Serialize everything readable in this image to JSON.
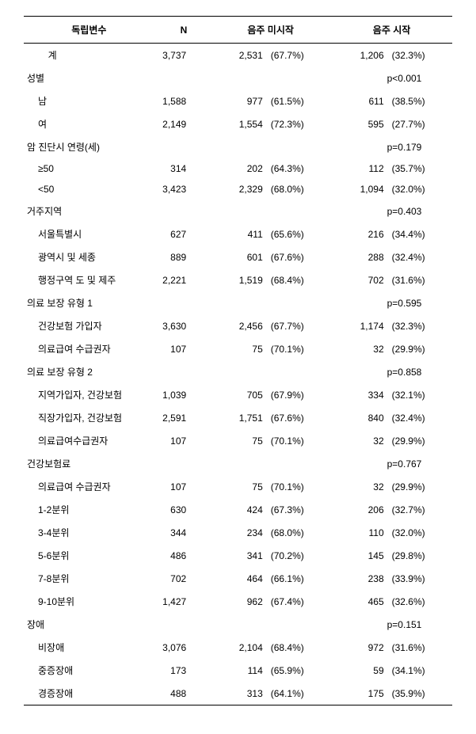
{
  "headers": {
    "var": "독립변수",
    "n": "N",
    "no_start": "음주 미시작",
    "start": "음주 시작"
  },
  "total": {
    "label": "계",
    "n": "3,737",
    "v1": "2,531",
    "p1": "(67.7%)",
    "v2": "1,206",
    "p2": "(32.3%)"
  },
  "groups": [
    {
      "label": "성별",
      "pval": "p<0.001",
      "rows": [
        {
          "label": "남",
          "n": "1,588",
          "v1": "977",
          "p1": "(61.5%)",
          "v2": "611",
          "p2": "(38.5%)"
        },
        {
          "label": "여",
          "n": "2,149",
          "v1": "1,554",
          "p1": "(72.3%)",
          "v2": "595",
          "p2": "(27.7%)"
        }
      ]
    },
    {
      "label": "암 진단시 연령(세)",
      "pval": "p=0.179",
      "rows": [
        {
          "label": "≥50",
          "n": "314",
          "v1": "202",
          "p1": "(64.3%)",
          "v2": "112",
          "p2": "(35.7%)"
        },
        {
          "label": "<50",
          "n": "3,423",
          "v1": "2,329",
          "p1": "(68.0%)",
          "v2": "1,094",
          "p2": "(32.0%)"
        }
      ]
    },
    {
      "label": "거주지역",
      "pval": "p=0.403",
      "rows": [
        {
          "label": "서울특별시",
          "n": "627",
          "v1": "411",
          "p1": "(65.6%)",
          "v2": "216",
          "p2": "(34.4%)"
        },
        {
          "label": "광역시 및 세종",
          "n": "889",
          "v1": "601",
          "p1": "(67.6%)",
          "v2": "288",
          "p2": "(32.4%)"
        },
        {
          "label": "행정구역 도 및 제주",
          "n": "2,221",
          "v1": "1,519",
          "p1": "(68.4%)",
          "v2": "702",
          "p2": "(31.6%)"
        }
      ]
    },
    {
      "label": "의료 보장 유형 1",
      "pval": "p=0.595",
      "rows": [
        {
          "label": "건강보험 가입자",
          "n": "3,630",
          "v1": "2,456",
          "p1": "(67.7%)",
          "v2": "1,174",
          "p2": "(32.3%)"
        },
        {
          "label": "의료급여 수급권자",
          "n": "107",
          "v1": "75",
          "p1": "(70.1%)",
          "v2": "32",
          "p2": "(29.9%)"
        }
      ]
    },
    {
      "label": "의료 보장 유형 2",
      "pval": "p=0.858",
      "rows": [
        {
          "label": "지역가입자, 건강보험",
          "n": "1,039",
          "v1": "705",
          "p1": "(67.9%)",
          "v2": "334",
          "p2": "(32.1%)"
        },
        {
          "label": "직장가입자, 건강보험",
          "n": "2,591",
          "v1": "1,751",
          "p1": "(67.6%)",
          "v2": "840",
          "p2": "(32.4%)"
        },
        {
          "label": "의료급여수급권자",
          "n": "107",
          "v1": "75",
          "p1": "(70.1%)",
          "v2": "32",
          "p2": "(29.9%)"
        }
      ]
    },
    {
      "label": "건강보험료",
      "pval": "p=0.767",
      "rows": [
        {
          "label": "의료급여 수급권자",
          "n": "107",
          "v1": "75",
          "p1": "(70.1%)",
          "v2": "32",
          "p2": "(29.9%)"
        },
        {
          "label": "1-2분위",
          "n": "630",
          "v1": "424",
          "p1": "(67.3%)",
          "v2": "206",
          "p2": "(32.7%)"
        },
        {
          "label": "3-4분위",
          "n": "344",
          "v1": "234",
          "p1": "(68.0%)",
          "v2": "110",
          "p2": "(32.0%)"
        },
        {
          "label": "5-6분위",
          "n": "486",
          "v1": "341",
          "p1": "(70.2%)",
          "v2": "145",
          "p2": "(29.8%)"
        },
        {
          "label": "7-8분위",
          "n": "702",
          "v1": "464",
          "p1": "(66.1%)",
          "v2": "238",
          "p2": "(33.9%)"
        },
        {
          "label": "9-10분위",
          "n": "1,427",
          "v1": "962",
          "p1": "(67.4%)",
          "v2": "465",
          "p2": "(32.6%)"
        }
      ]
    },
    {
      "label": "장애",
      "pval": "p=0.151",
      "rows": [
        {
          "label": "비장애",
          "n": "3,076",
          "v1": "2,104",
          "p1": "(68.4%)",
          "v2": "972",
          "p2": "(31.6%)"
        },
        {
          "label": "중증장애",
          "n": "173",
          "v1": "114",
          "p1": "(65.9%)",
          "v2": "59",
          "p2": "(34.1%)"
        },
        {
          "label": "경증장애",
          "n": "488",
          "v1": "313",
          "p1": "(64.1%)",
          "v2": "175",
          "p2": "(35.9%)"
        }
      ]
    }
  ]
}
